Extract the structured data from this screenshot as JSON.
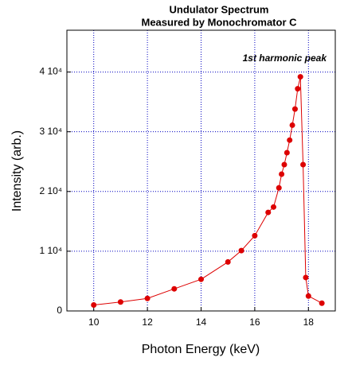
{
  "chart_data": {
    "type": "line",
    "title": "Undulator Spectrum",
    "subtitle": "Measured by Monochromator C",
    "x_label": "Photon Energy (keV)",
    "y_label": "Intensity (arb.)",
    "annotation": "1st harmonic peak",
    "x": [
      10,
      11,
      12,
      13,
      14,
      15,
      15.5,
      16,
      16.5,
      16.7,
      16.9,
      17.0,
      17.1,
      17.2,
      17.3,
      17.4,
      17.5,
      17.6,
      17.7,
      17.8,
      17.9,
      18.0,
      18.5
    ],
    "values": [
      1000,
      1500,
      2100,
      3700,
      5300,
      8200,
      10100,
      12600,
      16500,
      17400,
      20600,
      22900,
      24500,
      26500,
      28600,
      31100,
      33800,
      37200,
      39200,
      24500,
      5600,
      2500,
      1300
    ],
    "color": "#dd0000",
    "xlim": [
      9,
      19
    ],
    "xticks": [
      10,
      12,
      14,
      16,
      18
    ],
    "ylim": [
      0,
      47000
    ],
    "yticks": [
      0,
      {
        "value": 10000,
        "label": "1 10⁴"
      },
      {
        "value": 20000,
        "label": "2 10⁴"
      },
      {
        "value": 30000,
        "label": "3 10⁴"
      },
      {
        "value": 40000,
        "label": "4 10⁴"
      }
    ],
    "grid": true
  }
}
